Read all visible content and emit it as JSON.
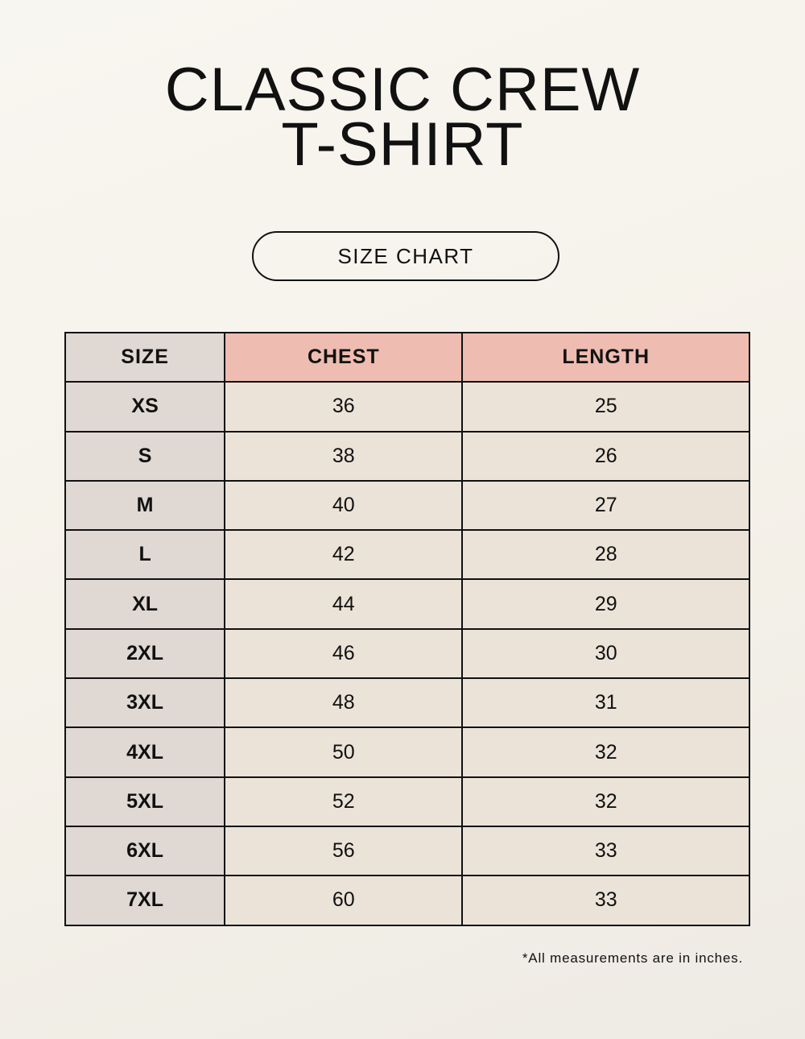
{
  "title_line1": "CLASSIC CREW",
  "title_line2": "T-SHIRT",
  "subtitle": "SIZE CHART",
  "table": {
    "headers": [
      "SIZE",
      "CHEST",
      "LENGTH"
    ],
    "rows": [
      [
        "XS",
        "36",
        "25"
      ],
      [
        "S",
        "38",
        "26"
      ],
      [
        "M",
        "40",
        "27"
      ],
      [
        "L",
        "42",
        "28"
      ],
      [
        "XL",
        "44",
        "29"
      ],
      [
        "2XL",
        "46",
        "30"
      ],
      [
        "3XL",
        "48",
        "31"
      ],
      [
        "4XL",
        "50",
        "32"
      ],
      [
        "5XL",
        "52",
        "32"
      ],
      [
        "6XL",
        "56",
        "33"
      ],
      [
        "7XL",
        "60",
        "33"
      ]
    ]
  },
  "footnote": "*All measurements are in inches.",
  "colors": {
    "header_accent": "#eebcb0",
    "size_column": "#e0d8d3",
    "cell": "#ebe3d8"
  }
}
